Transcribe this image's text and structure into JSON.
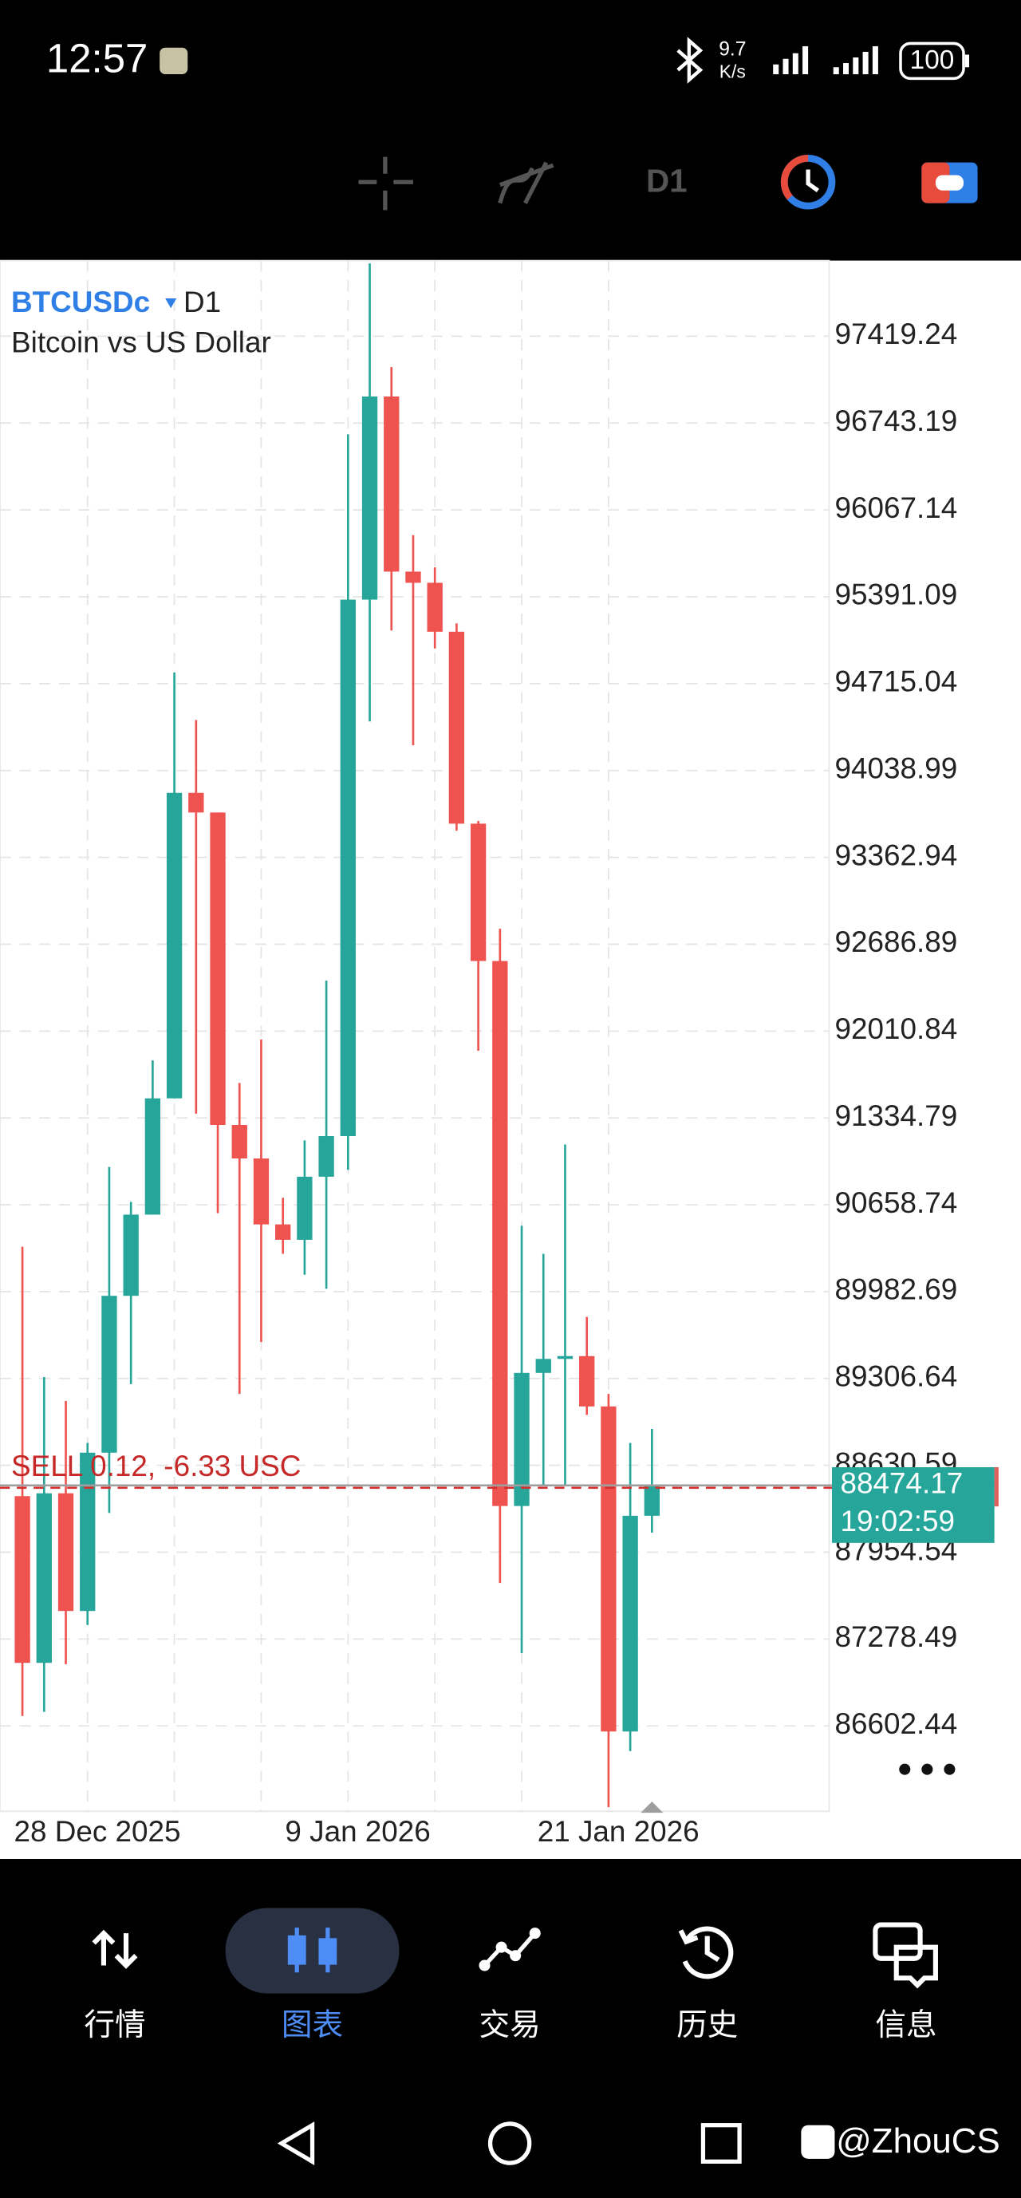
{
  "status_bar": {
    "time": "12:57",
    "speed": "9.7",
    "speed_unit": "K/s",
    "battery": "100"
  },
  "toolbar": {
    "timeframe": "D1"
  },
  "chart_data": {
    "type": "candlestick",
    "symbol": "BTCUSDc",
    "timeframe": "D1",
    "subtitle": "Bitcoin vs US Dollar",
    "categories": [
      null,
      null,
      null,
      "28 Dec 2025",
      null,
      null,
      null,
      null,
      null,
      null,
      null,
      null,
      null,
      null,
      null,
      "9 Jan 2026",
      null,
      null,
      null,
      null,
      null,
      null,
      null,
      null,
      null,
      null,
      null,
      "21 Jan 2026",
      null,
      null
    ],
    "open": [
      88391,
      87093,
      88413,
      87497,
      88729,
      89950,
      90582,
      91487,
      93865,
      93712,
      91280,
      91019,
      90506,
      90386,
      90877,
      91193,
      95369,
      96950,
      95587,
      95500,
      95119,
      93625,
      92556,
      88314,
      89350,
      89459,
      89481,
      89089,
      86559,
      88238
    ],
    "high": [
      90332,
      89318,
      89132,
      88805,
      90953,
      90681,
      91782,
      94802,
      94432,
      93712,
      91607,
      91945,
      90713,
      91160,
      92403,
      96656,
      97986,
      97179,
      95871,
      95620,
      95184,
      93646,
      92807,
      90495,
      90277,
      91128,
      89786,
      89187,
      88805,
      88914
    ],
    "low": [
      86679,
      86712,
      87082,
      87388,
      88260,
      89263,
      90582,
      91487,
      91368,
      90593,
      89187,
      89590,
      90277,
      90114,
      90005,
      90931,
      94421,
      95129,
      94235,
      94988,
      93570,
      91858,
      87715,
      87169,
      88478,
      88478,
      89023,
      85970,
      86406,
      88107
    ],
    "close": [
      87093,
      88413,
      87497,
      88729,
      89950,
      90582,
      91487,
      93865,
      93712,
      91280,
      91019,
      90506,
      90386,
      90877,
      91193,
      95369,
      96950,
      95587,
      95500,
      95119,
      93625,
      92556,
      88314,
      89350,
      89459,
      89481,
      89089,
      86559,
      88238,
      88474.17
    ],
    "up_color": "#26a69a",
    "down_color": "#ef5350",
    "ylim": [
      85937.3,
      98008.0
    ],
    "yticks": [
      97419.24,
      96743.19,
      96067.14,
      95391.09,
      94715.04,
      94038.99,
      93362.94,
      92686.89,
      92010.84,
      91334.79,
      90658.74,
      89982.69,
      89306.64,
      88630.59,
      87954.54,
      87278.49,
      86602.44
    ],
    "grid": true,
    "current_price": 88474.17,
    "countdown": "19:02:59",
    "position_label": "SELL 0.12,  -6.33 USC",
    "position_price": 88456
  },
  "nav": {
    "items": [
      "行情",
      "图表",
      "交易",
      "历史",
      "信息"
    ],
    "active": 1
  },
  "watermark": "@ZhouCS"
}
